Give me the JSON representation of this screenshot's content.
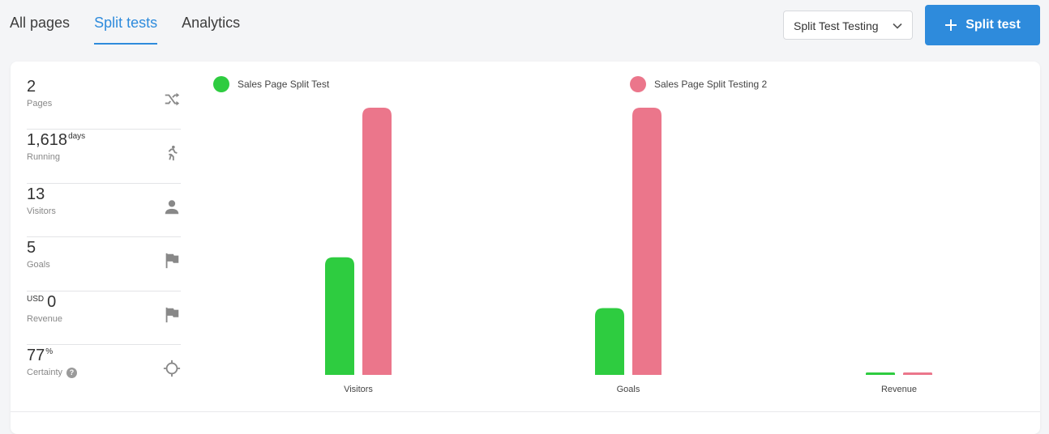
{
  "tabs": [
    {
      "label": "All pages",
      "active": false
    },
    {
      "label": "Split tests",
      "active": true
    },
    {
      "label": "Analytics",
      "active": false
    }
  ],
  "dropdown": {
    "selected": "Split Test Testing"
  },
  "primary_button": {
    "label": "Split test"
  },
  "stats": [
    {
      "value": "2",
      "sup": "",
      "prefix": "",
      "label": "Pages",
      "icon": "shuffle-icon"
    },
    {
      "value": "1,618",
      "sup": "days",
      "prefix": "",
      "label": "Running",
      "icon": "running-icon"
    },
    {
      "value": "13",
      "sup": "",
      "prefix": "",
      "label": "Visitors",
      "icon": "person-icon"
    },
    {
      "value": "5",
      "sup": "",
      "prefix": "",
      "label": "Goals",
      "icon": "flag-icon"
    },
    {
      "value": "0",
      "sup": "",
      "prefix": "USD",
      "label": "Revenue",
      "icon": "flag-icon"
    },
    {
      "value": "77",
      "sup": "%",
      "prefix": "",
      "label": "Certainty",
      "icon": "crosshair-icon",
      "help": "?"
    }
  ],
  "colors": {
    "accent": "#2e8bdc",
    "series_a": "#2ecc40",
    "series_b": "#eb768b"
  },
  "chart_data": {
    "type": "bar",
    "categories": [
      "Visitors",
      "Goals",
      "Revenue"
    ],
    "series": [
      {
        "name": "Sales Page Split Test",
        "values": [
          0.44,
          0.25,
          0
        ],
        "color": "#2ecc40"
      },
      {
        "name": "Sales Page Split Testing 2",
        "values": [
          1.0,
          1.0,
          0
        ],
        "color": "#eb768b"
      }
    ],
    "ylim": [
      0,
      1
    ],
    "grid": false,
    "legend": "top"
  }
}
